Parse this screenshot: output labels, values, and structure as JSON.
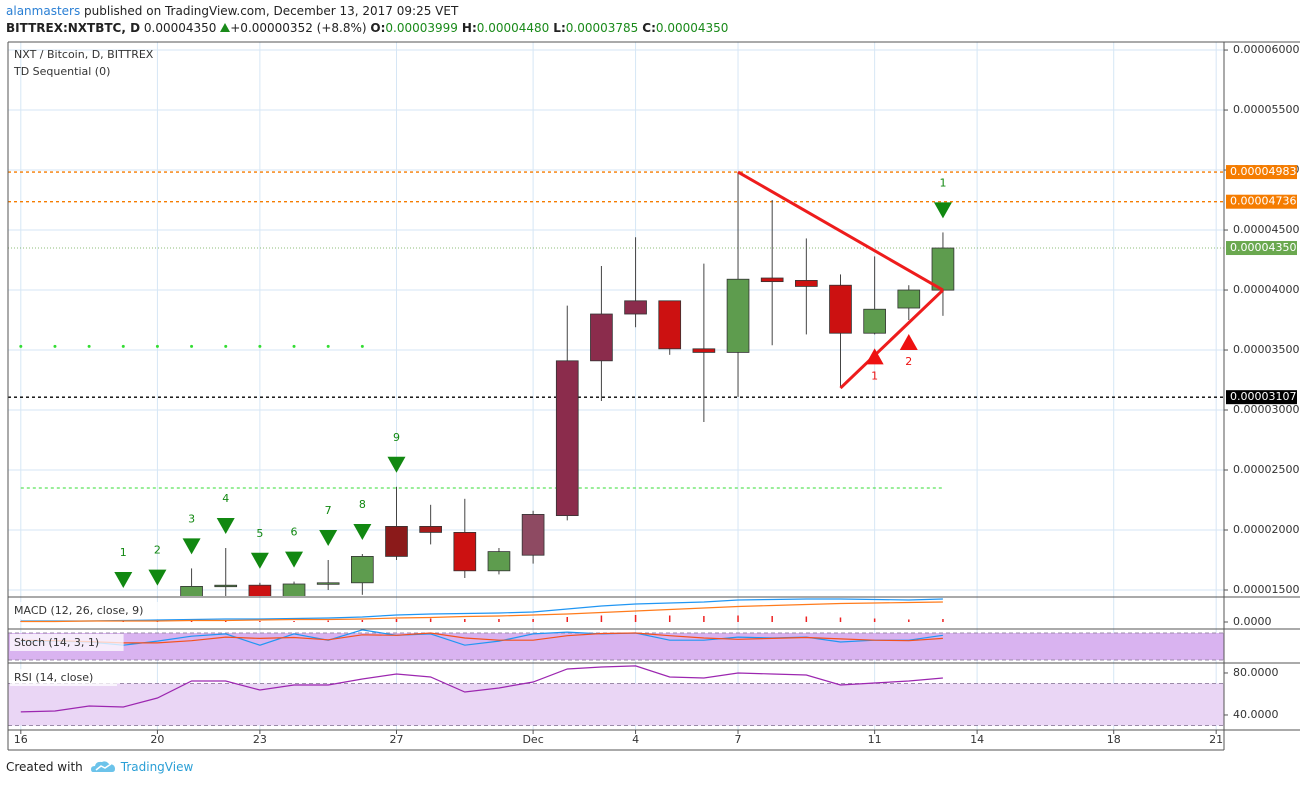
{
  "header": {
    "user": "alanmasters",
    "published": "published on TradingView.com, December 13, 2017 09:25 VET",
    "symbol": "BITTREX:NXTBTC, D",
    "last": "0.00004350",
    "change": "+0.00000352 (+8.8%)",
    "ohlc": [
      {
        "label": "O:",
        "value": "0.00003999"
      },
      {
        "label": "H:",
        "value": "0.00004480"
      },
      {
        "label": "L:",
        "value": "0.00003785"
      },
      {
        "label": "C:",
        "value": "0.00004350"
      }
    ]
  },
  "chart_data": [
    {
      "type": "candlestick",
      "title": "NXT / Bitcoin, D, BITTREX",
      "subtitle": "TD Sequential (0)",
      "x": [
        "2017-11-19",
        "2017-11-20",
        "2017-11-21",
        "2017-11-22",
        "2017-11-23",
        "2017-11-24",
        "2017-11-25",
        "2017-11-26",
        "2017-11-27",
        "2017-11-28",
        "2017-11-29",
        "2017-11-30",
        "2017-12-01",
        "2017-12-02",
        "2017-12-03",
        "2017-12-04",
        "2017-12-05",
        "2017-12-06",
        "2017-12-07",
        "2017-12-08",
        "2017-12-09",
        "2017-12-10",
        "2017-12-11",
        "2017-12-12",
        "2017-12-13"
      ],
      "open": [
        1.35e-05,
        1.3e-05,
        1.44e-05,
        1.53e-05,
        1.54e-05,
        1.44e-05,
        1.55e-05,
        1.56e-05,
        1.78e-05,
        2.03e-05,
        1.98e-05,
        1.66e-05,
        1.79e-05,
        2.12e-05,
        3.41e-05,
        3.8e-05,
        3.91e-05,
        3.51e-05,
        3.48e-05,
        4.1e-05,
        4.08e-05,
        4.04e-05,
        3.64e-05,
        3.85e-05,
        3.999e-05
      ],
      "high": [
        1.4e-05,
        1.42e-05,
        1.68e-05,
        1.85e-05,
        1.56e-05,
        1.57e-05,
        1.75e-05,
        1.8e-05,
        2.36e-05,
        2.21e-05,
        2.26e-05,
        1.85e-05,
        2.16e-05,
        3.87e-05,
        4.2e-05,
        4.44e-05,
        3.91e-05,
        4.22e-05,
        4.983e-05,
        4.75e-05,
        4.43e-05,
        4.13e-05,
        4.28e-05,
        4.04e-05,
        4.48e-05
      ],
      "low": [
        1.25e-05,
        1.26e-05,
        1.4e-05,
        1.4e-05,
        1.38e-05,
        1.4e-05,
        1.5e-05,
        1.46e-05,
        1.75e-05,
        1.88e-05,
        1.6e-05,
        1.63e-05,
        1.72e-05,
        2.08e-05,
        3.075e-05,
        3.69e-05,
        3.46e-05,
        2.9e-05,
        3.11e-05,
        3.54e-05,
        3.63e-05,
        3.19e-05,
        3.63e-05,
        3.75e-05,
        3.785e-05
      ],
      "close": [
        1.3e-05,
        1.38e-05,
        1.53e-05,
        1.54e-05,
        1.44e-05,
        1.55e-05,
        1.56e-05,
        1.78e-05,
        2.03e-05,
        1.98e-05,
        1.66e-05,
        1.82e-05,
        2.13e-05,
        3.41e-05,
        3.8e-05,
        3.91e-05,
        3.51e-05,
        3.48e-05,
        4.09e-05,
        4.07e-05,
        4.03e-05,
        3.64e-05,
        3.84e-05,
        4e-05,
        4.35e-05
      ],
      "colors": [
        "#5e9c4e",
        "#5e9c4e",
        "#5e9c4e",
        "#5e9c4e",
        "#cc1111",
        "#5e9c4e",
        "#5e9c4e",
        "#5e9c4e",
        "#8b1a1a",
        "#a51c1c",
        "#cc1111",
        "#5e9c4e",
        "#8e4a62",
        "#8b2c4c",
        "#8b2c4c",
        "#8b2c4c",
        "#cc1111",
        "#cc1111",
        "#5e9c4e",
        "#cc1111",
        "#cc1111",
        "#cc1111",
        "#5e9c4e",
        "#5e9c4e",
        "#5e9c4e"
      ],
      "xlim": [
        "2017-11-15T15:00:00Z",
        "2017-12-21T05:30:00Z"
      ],
      "xticks": [
        {
          "value": "2017-11-16",
          "label": "16"
        },
        {
          "value": "2017-11-20",
          "label": "20"
        },
        {
          "value": "2017-11-23",
          "label": "23"
        },
        {
          "value": "2017-11-27",
          "label": "27"
        },
        {
          "value": "2017-12-01",
          "label": "Dec"
        },
        {
          "value": "2017-12-04",
          "label": "4"
        },
        {
          "value": "2017-12-07",
          "label": "7"
        },
        {
          "value": "2017-12-11",
          "label": "11"
        },
        {
          "value": "2017-12-14",
          "label": "14"
        },
        {
          "value": "2017-12-18",
          "label": "18"
        },
        {
          "value": "2017-12-21",
          "label": "21"
        }
      ],
      "ylim": [
        1.45e-05,
        6.067e-05
      ],
      "yticks": [
        {
          "value": 1.5e-05,
          "label": "0.00001500"
        },
        {
          "value": 2e-05,
          "label": "0.00002000"
        },
        {
          "value": 2.5e-05,
          "label": "0.00002500"
        },
        {
          "value": 3e-05,
          "label": "0.00003000"
        },
        {
          "value": 3.5e-05,
          "label": "0.00003500"
        },
        {
          "value": 4e-05,
          "label": "0.00004000"
        },
        {
          "value": 4.5e-05,
          "label": "0.00004500"
        },
        {
          "value": 5e-05,
          "label": "0.00005000"
        },
        {
          "value": 5.5e-05,
          "label": "0.00005500"
        },
        {
          "value": 6e-05,
          "label": "0.00006000"
        }
      ],
      "grid": true,
      "levels": [
        {
          "value": 4.983e-05,
          "label": "0.00004983",
          "color": "#f57c00",
          "style": "dashed"
        },
        {
          "value": 4.736e-05,
          "label": "0.00004736",
          "color": "#f57c00",
          "style": "dashed"
        },
        {
          "value": 4.35e-05,
          "label": "0.00004350",
          "color": "#6aa84f",
          "style": "dotted"
        },
        {
          "value": 3.107e-05,
          "label": "0.00003107",
          "color": "#000000",
          "style": "dashed"
        }
      ],
      "td_levels": [
        {
          "value": 3.53e-05,
          "from": "2017-11-16",
          "to": "2017-11-26",
          "color": "#33dd33",
          "style": "dots"
        },
        {
          "value": 2.35e-05,
          "from": "2017-11-16",
          "to": "2017-12-13",
          "color": "#33dd33",
          "style": "dashed"
        }
      ],
      "trendlines": [
        {
          "x": [
            "2017-12-07",
            "2017-12-13"
          ],
          "y": [
            4.983e-05,
            4e-05
          ],
          "color": "#ee1c1c"
        },
        {
          "x": [
            "2017-12-10",
            "2017-12-13"
          ],
          "y": [
            3.183e-05,
            4e-05
          ],
          "color": "#ee1c1c"
        }
      ],
      "td_sell": [
        {
          "x": "2017-11-19",
          "label": "1"
        },
        {
          "x": "2017-11-20",
          "label": "2"
        },
        {
          "x": "2017-11-21",
          "label": "3"
        },
        {
          "x": "2017-11-22",
          "label": "4"
        },
        {
          "x": "2017-11-23",
          "label": "5"
        },
        {
          "x": "2017-11-24",
          "label": "6"
        },
        {
          "x": "2017-11-25",
          "label": "7"
        },
        {
          "x": "2017-11-26",
          "label": "8"
        },
        {
          "x": "2017-11-27",
          "label": "9"
        },
        {
          "x": "2017-12-13",
          "label": "1"
        }
      ],
      "td_sell_color": "#118811",
      "td_buy": [
        {
          "x": "2017-12-11",
          "label": "1"
        },
        {
          "x": "2017-12-12",
          "label": "2"
        }
      ],
      "td_buy_color": "#ee1111"
    },
    {
      "type": "macd",
      "title": "MACD (12, 26, close, 9)",
      "x": [
        "2017-11-16",
        "2017-11-17",
        "2017-11-18",
        "2017-11-19",
        "2017-11-20",
        "2017-11-21",
        "2017-11-22",
        "2017-11-23",
        "2017-11-24",
        "2017-11-25",
        "2017-11-26",
        "2017-11-27",
        "2017-11-28",
        "2017-11-29",
        "2017-11-30",
        "2017-12-01",
        "2017-12-02",
        "2017-12-03",
        "2017-12-04",
        "2017-12-05",
        "2017-12-06",
        "2017-12-07",
        "2017-12-08",
        "2017-12-09",
        "2017-12-10",
        "2017-12-11",
        "2017-12-12",
        "2017-12-13"
      ],
      "series": [
        {
          "name": "MACD",
          "color": "#2196f3",
          "values": [
            2e-07,
            2e-07,
            2e-07,
            3e-07,
            4e-07,
            5e-07,
            6e-07,
            6e-07,
            7e-07,
            8e-07,
            1e-06,
            1.4e-06,
            1.6e-06,
            1.7e-06,
            1.8e-06,
            2e-06,
            2.6e-06,
            3.2e-06,
            3.6e-06,
            3.8e-06,
            4e-06,
            4.4e-06,
            4.5e-06,
            4.6e-06,
            4.6e-06,
            4.5e-06,
            4.4e-06,
            4.6e-06
          ]
        },
        {
          "name": "Signal",
          "color": "#ff7b1c",
          "values": [
            1e-07,
            1e-07,
            2e-07,
            2e-07,
            2e-07,
            3e-07,
            3e-07,
            4e-07,
            5e-07,
            5e-07,
            6e-07,
            8e-07,
            9e-07,
            1.1e-06,
            1.2e-06,
            1.4e-06,
            1.6e-06,
            1.9e-06,
            2.2e-06,
            2.5e-06,
            2.8e-06,
            3.1e-06,
            3.3e-06,
            3.5e-06,
            3.7e-06,
            3.8e-06,
            3.9e-06,
            4e-06
          ]
        }
      ],
      "histogram": {
        "color": "#ee2222",
        "values": [
          1e-07,
          1e-07,
          0,
          1e-07,
          2e-07,
          2e-07,
          3e-07,
          2e-07,
          2e-07,
          3e-07,
          4e-07,
          6e-07,
          7e-07,
          6e-07,
          6e-07,
          6e-07,
          1e-06,
          1.3e-06,
          1.4e-06,
          1.3e-06,
          1.2e-06,
          1.3e-06,
          1.2e-06,
          1.1e-06,
          9e-07,
          7e-07,
          5e-07,
          6e-07
        ]
      },
      "ylim": [
        -1.2e-06,
        4.8e-06
      ],
      "yticks": [
        {
          "value": 0,
          "label": "0.0000"
        }
      ]
    },
    {
      "type": "line",
      "title": "Stoch (14, 3, 1)",
      "x": [
        "2017-11-16",
        "2017-11-17",
        "2017-11-18",
        "2017-11-19",
        "2017-11-20",
        "2017-11-21",
        "2017-11-22",
        "2017-11-23",
        "2017-11-24",
        "2017-11-25",
        "2017-11-26",
        "2017-11-27",
        "2017-11-28",
        "2017-11-29",
        "2017-11-30",
        "2017-12-01",
        "2017-12-02",
        "2017-12-03",
        "2017-12-04",
        "2017-12-05",
        "2017-12-06",
        "2017-12-07",
        "2017-12-08",
        "2017-12-09",
        "2017-12-10",
        "2017-12-11",
        "2017-12-12",
        "2017-12-13"
      ],
      "series": [
        {
          "name": "%K",
          "color": "#2196f3",
          "values": [
            62,
            62,
            60,
            53,
            62,
            73,
            78,
            53,
            78,
            64,
            87,
            75,
            78,
            53,
            62,
            78,
            82,
            78,
            80,
            64,
            64,
            71,
            69,
            71,
            60,
            64,
            64,
            75
          ]
        },
        {
          "name": "%D",
          "color": "#f4511e",
          "values": [
            64,
            63,
            61,
            58,
            58,
            63,
            71,
            68,
            70,
            65,
            76,
            75,
            80,
            69,
            64,
            64,
            74,
            79,
            80,
            74,
            69,
            66,
            68,
            70,
            67,
            64,
            63,
            68
          ]
        }
      ],
      "band": [
        20,
        80
      ],
      "band_color": "#d9b3f0",
      "ylim": [
        15.6,
        86.7
      ]
    },
    {
      "type": "line",
      "title": "RSI (14, close)",
      "x": [
        "2017-11-16",
        "2017-11-17",
        "2017-11-18",
        "2017-11-19",
        "2017-11-20",
        "2017-11-21",
        "2017-11-22",
        "2017-11-23",
        "2017-11-24",
        "2017-11-25",
        "2017-11-26",
        "2017-11-27",
        "2017-11-28",
        "2017-11-29",
        "2017-11-30",
        "2017-12-01",
        "2017-12-02",
        "2017-12-03",
        "2017-12-04",
        "2017-12-05",
        "2017-12-06",
        "2017-12-07",
        "2017-12-08",
        "2017-12-09",
        "2017-12-10",
        "2017-12-11",
        "2017-12-12",
        "2017-12-13"
      ],
      "series": [
        {
          "name": "RSI",
          "color": "#9c27b0",
          "values": [
            42.9,
            43.8,
            48.6,
            47.6,
            56.2,
            72.4,
            72.4,
            63.8,
            68.6,
            68.6,
            74.3,
            79,
            76.2,
            61.9,
            65.7,
            71.4,
            83.8,
            85.7,
            86.7,
            76.2,
            75.2,
            80,
            79,
            78.1,
            68.6,
            70.5,
            72.4,
            75.2
          ]
        }
      ],
      "band": [
        30,
        70
      ],
      "band_color": "#ead6f5",
      "ylim": [
        27.6,
        87.6
      ],
      "yticks": [
        {
          "value": 80,
          "label": "80.0000"
        },
        {
          "value": 40,
          "label": "40.0000"
        }
      ]
    }
  ],
  "footer": {
    "created": "Created with",
    "brand": "TradingView"
  }
}
